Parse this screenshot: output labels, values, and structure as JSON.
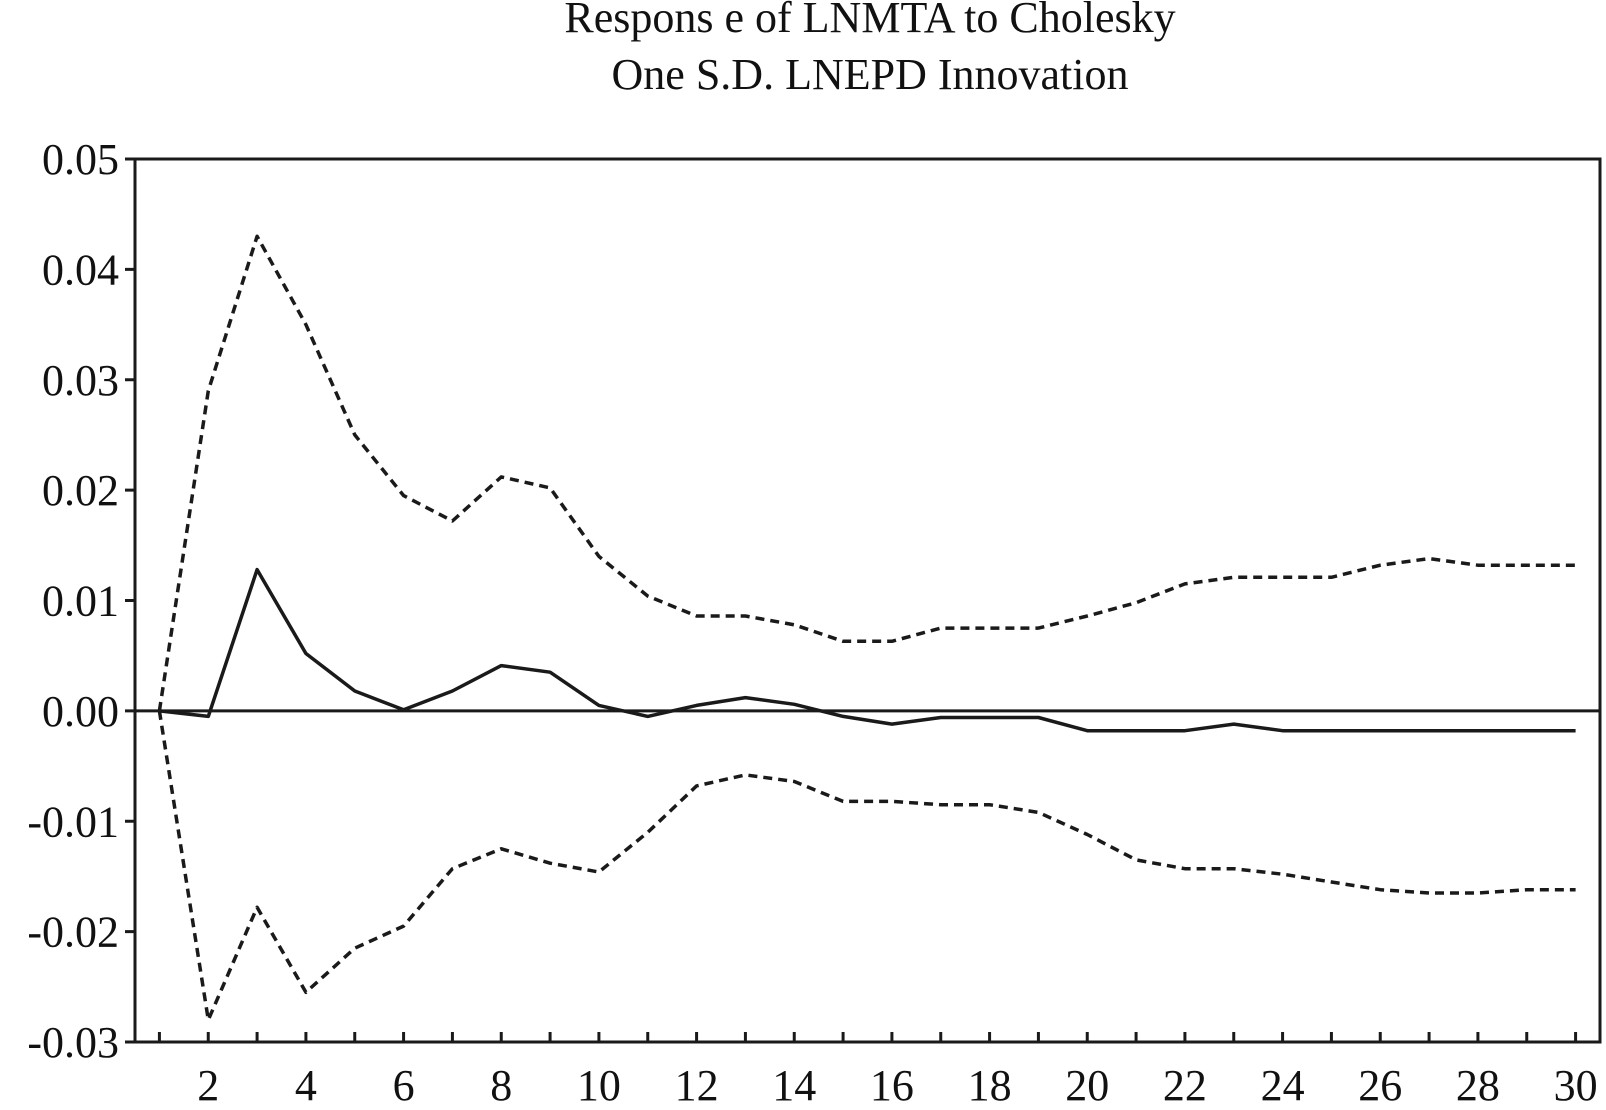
{
  "chart_data": {
    "type": "line",
    "title": [
      "Respons e of LNMTA to Cholesky",
      "One  S.D. LNEPD Innovation"
    ],
    "xlabel": "",
    "ylabel": "",
    "xlim": [
      0.5,
      30.5
    ],
    "ylim": [
      -0.03,
      0.05
    ],
    "xticks": [
      1,
      2,
      3,
      4,
      5,
      6,
      7,
      8,
      9,
      10,
      11,
      12,
      13,
      14,
      15,
      16,
      17,
      18,
      19,
      20,
      21,
      22,
      23,
      24,
      25,
      26,
      27,
      28,
      29,
      30
    ],
    "xtick_labels": [
      "2",
      "4",
      "6",
      "8",
      "10",
      "12",
      "14",
      "16",
      "18",
      "20",
      "22",
      "24",
      "26",
      "28",
      "30"
    ],
    "xtick_label_values": [
      2,
      4,
      6,
      8,
      10,
      12,
      14,
      16,
      18,
      20,
      22,
      24,
      26,
      28,
      30
    ],
    "ytick_labels": [
      "0.05",
      "0.04",
      "0.03",
      "0.02",
      "0.01",
      "0.00",
      "-0.01",
      "-0.02",
      "-0.03"
    ],
    "ytick_values": [
      0.05,
      0.04,
      0.03,
      0.02,
      0.01,
      0.0,
      -0.01,
      -0.02,
      -0.03
    ],
    "zero_line": true,
    "grid": false,
    "x": [
      1,
      2,
      3,
      4,
      5,
      6,
      7,
      8,
      9,
      10,
      11,
      12,
      13,
      14,
      15,
      16,
      17,
      18,
      19,
      20,
      21,
      22,
      23,
      24,
      25,
      26,
      27,
      28,
      29,
      30
    ],
    "series": [
      {
        "role": "response",
        "style": "solid",
        "values": [
          0.0,
          -0.0005,
          0.0128,
          0.0052,
          0.0018,
          0.0001,
          0.0018,
          0.0041,
          0.0035,
          0.0005,
          -0.0005,
          0.0005,
          0.0012,
          0.0006,
          -0.0005,
          -0.0012,
          -0.0006,
          -0.0006,
          -0.0006,
          -0.0018,
          -0.0018,
          -0.0018,
          -0.0012,
          -0.0018,
          -0.0018,
          -0.0018,
          -0.0018,
          -0.0018,
          -0.0018,
          -0.0018
        ]
      },
      {
        "role": "upper band",
        "style": "dashed",
        "values": [
          0.0,
          0.029,
          0.043,
          0.035,
          0.025,
          0.0195,
          0.0172,
          0.0212,
          0.0202,
          0.014,
          0.0104,
          0.0086,
          0.0086,
          0.0078,
          0.0063,
          0.0063,
          0.0075,
          0.0075,
          0.0075,
          0.0086,
          0.0098,
          0.0115,
          0.0121,
          0.0121,
          0.0121,
          0.0132,
          0.0138,
          0.0132,
          0.0132,
          0.0132
        ]
      },
      {
        "role": "lower band",
        "style": "dashed",
        "values": [
          0.0,
          -0.028,
          -0.0178,
          -0.0255,
          -0.0215,
          -0.0195,
          -0.0143,
          -0.0125,
          -0.0138,
          -0.0146,
          -0.011,
          -0.0068,
          -0.0058,
          -0.0064,
          -0.0082,
          -0.0082,
          -0.0085,
          -0.0085,
          -0.0092,
          -0.0112,
          -0.0135,
          -0.0143,
          -0.0143,
          -0.0148,
          -0.0155,
          -0.0162,
          -0.0165,
          -0.0165,
          -0.0162,
          -0.0162
        ]
      }
    ],
    "colors": {
      "line": "#1a1a1a",
      "background": "#ffffff"
    }
  }
}
